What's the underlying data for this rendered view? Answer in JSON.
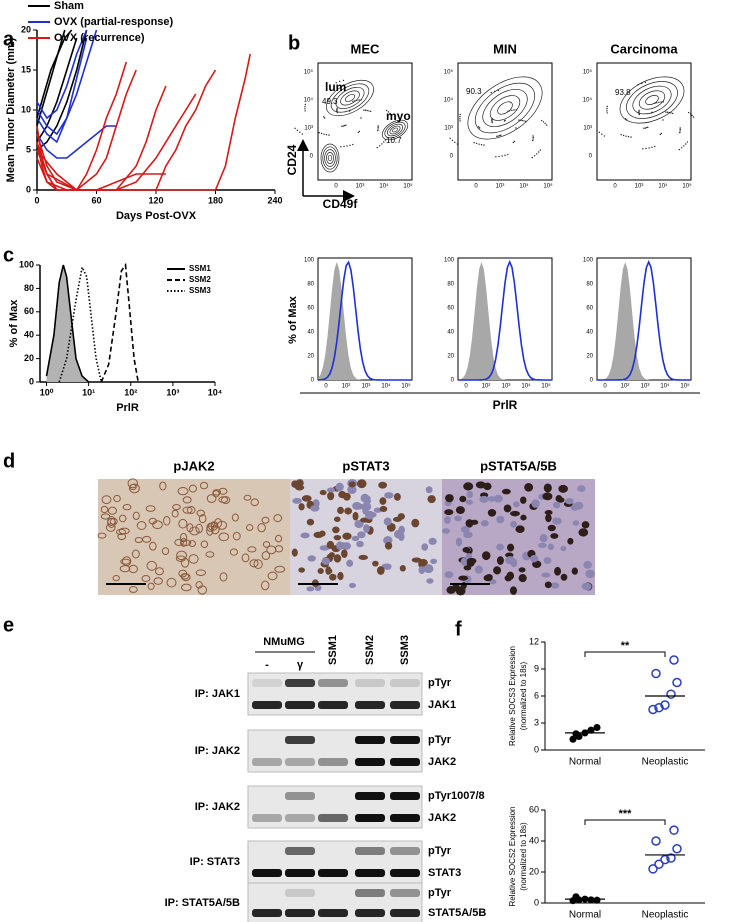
{
  "panel_labels": [
    "a",
    "b",
    "c",
    "d",
    "e",
    "f"
  ],
  "chart_data": [
    {
      "type": "line",
      "ylabel": "Mean Tumor Diameter (mm)",
      "xlabel": "Days Post-OVX",
      "xlim": [
        0,
        240
      ],
      "xticks": [
        0,
        60,
        120,
        180,
        240
      ],
      "ylim": [
        0,
        20
      ],
      "yticks": [
        0,
        5,
        10,
        15,
        20
      ],
      "legend": "top",
      "series": [
        {
          "name": "Sham",
          "color": "#000000",
          "lines": [
            {
              "x": [
                0,
                7,
                14,
                21,
                28
              ],
              "values": [
                8,
                11,
                14,
                17,
                20
              ]
            },
            {
              "x": [
                0,
                10,
                20,
                30,
                40
              ],
              "values": [
                6,
                8,
                11,
                15,
                19
              ]
            },
            {
              "x": [
                0,
                10,
                20,
                30,
                40,
                50
              ],
              "values": [
                5,
                6,
                8,
                11,
                15,
                20
              ]
            },
            {
              "x": [
                0,
                7,
                14,
                21,
                28,
                35
              ],
              "values": [
                9,
                12,
                15,
                17,
                19,
                20
              ]
            }
          ]
        },
        {
          "name": "OVX (partial-response)",
          "color": "#1f2fd6",
          "lines": [
            {
              "x": [
                0,
                10,
                20,
                30,
                40,
                50,
                60
              ],
              "values": [
                10,
                8,
                7,
                9,
                12,
                16,
                20
              ]
            },
            {
              "x": [
                0,
                10,
                20,
                30,
                40,
                50
              ],
              "values": [
                9,
                7,
                6,
                9,
                14,
                19
              ]
            },
            {
              "x": [
                0,
                10,
                20,
                30,
                40,
                50,
                60,
                70,
                80
              ],
              "values": [
                7,
                5,
                4,
                4,
                5,
                6,
                7,
                8,
                8
              ]
            },
            {
              "x": [
                0,
                10,
                20,
                30,
                40,
                50
              ],
              "values": [
                11,
                9,
                10,
                13,
                17,
                20
              ]
            }
          ]
        },
        {
          "name": "OVX (recurrence)",
          "color": "#d81818",
          "lines": [
            {
              "x": [
                0,
                5,
                10,
                20,
                30,
                40,
                50,
                60,
                70,
                80,
                90
              ],
              "values": [
                8,
                4,
                2,
                0,
                0,
                0,
                2,
                5,
                9,
                12,
                16
              ]
            },
            {
              "x": [
                0,
                5,
                10,
                20,
                40,
                60,
                70,
                80,
                90,
                100
              ],
              "values": [
                6,
                3,
                1,
                0,
                0,
                2,
                4,
                8,
                12,
                15
              ]
            },
            {
              "x": [
                0,
                10,
                20,
                40,
                60,
                80,
                100,
                110,
                120,
                130
              ],
              "values": [
                5,
                2,
                0,
                0,
                0,
                0,
                3,
                6,
                10,
                13
              ]
            },
            {
              "x": [
                0,
                10,
                20,
                40,
                60,
                80,
                100,
                120,
                140,
                150,
                160
              ],
              "values": [
                7,
                3,
                1,
                0,
                0,
                0,
                1,
                4,
                8,
                10,
                12
              ]
            },
            {
              "x": [
                0,
                10,
                30,
                60,
                90,
                120,
                130,
                140,
                150,
                160,
                170,
                180
              ],
              "values": [
                4,
                1,
                0,
                0,
                0,
                0,
                3,
                5,
                8,
                10,
                13,
                15
              ]
            },
            {
              "x": [
                0,
                10,
                40,
                80,
                120,
                140,
                160,
                180,
                190,
                200,
                210,
                215
              ],
              "values": [
                6,
                2,
                0,
                0,
                0,
                0,
                0,
                0,
                3,
                9,
                14,
                17
              ]
            },
            {
              "x": [
                0,
                20,
                40,
                60,
                80,
                100,
                110,
                120,
                130
              ],
              "values": [
                5,
                2,
                0,
                0,
                1,
                2,
                2,
                2,
                2
              ]
            }
          ]
        }
      ]
    },
    {
      "type": "line",
      "xlog": true,
      "ylabel": "% of Max",
      "xlabel": "PrlR",
      "xlim": [
        0.7,
        10000
      ],
      "xticks": [
        {
          "value": 1,
          "label": "10⁰"
        },
        {
          "value": 10,
          "label": "10¹"
        },
        {
          "value": 100,
          "label": "10²"
        },
        {
          "value": 1000,
          "label": "10³"
        },
        {
          "value": 10000,
          "label": "10⁴"
        }
      ],
      "ylim": [
        0,
        100
      ],
      "yticks": [
        0,
        20,
        40,
        60,
        80,
        100
      ],
      "legend": "upper right",
      "series": [
        {
          "name": "SSM1",
          "color": "#000000",
          "dash": "solid",
          "fill": "#b3b3b3",
          "x": [
            1,
            1.5,
            2,
            2.5,
            3,
            4,
            5,
            7,
            10
          ],
          "values": [
            5,
            40,
            85,
            100,
            90,
            50,
            20,
            5,
            0
          ]
        },
        {
          "name": "SSM2",
          "color": "#000000",
          "dash": "dashed",
          "x": [
            20,
            30,
            45,
            60,
            75,
            90,
            120,
            150
          ],
          "values": [
            0,
            15,
            60,
            95,
            100,
            70,
            20,
            0
          ]
        },
        {
          "name": "SSM3",
          "color": "#000000",
          "dash": "dotted",
          "x": [
            2,
            3,
            5,
            7,
            9,
            12,
            15,
            20
          ],
          "values": [
            0,
            20,
            70,
            98,
            90,
            50,
            20,
            0
          ]
        }
      ]
    },
    {
      "type": "strip",
      "ylabel": [
        "Relative SOCS3 Expression",
        "(normalized to 18s)"
      ],
      "categories": [
        "Normal",
        "Neoplastic"
      ],
      "ylim": [
        0,
        12
      ],
      "yticks": [
        0,
        3,
        6,
        9,
        12
      ],
      "colors": [
        "#000000",
        "#2a3dbd"
      ],
      "markers": [
        "filled",
        "open"
      ],
      "values": [
        [
          1.2,
          1.5,
          1.9,
          2.2,
          2.5,
          1.8
        ],
        [
          4.5,
          4.7,
          5.0,
          6.2,
          7.5,
          8.5,
          10
        ]
      ],
      "center_lines": [
        1.9,
        6.0
      ],
      "significance": "**"
    },
    {
      "type": "strip",
      "ylabel": [
        "Relative SOCS2 Expression",
        "(normalized to 18s)"
      ],
      "categories": [
        "Normal",
        "Neoplastic"
      ],
      "ylim": [
        0,
        60
      ],
      "yticks": [
        0,
        20,
        40,
        60
      ],
      "colors": [
        "#000000",
        "#2a3dbd"
      ],
      "markers": [
        "filled",
        "open"
      ],
      "values": [
        [
          1.5,
          2,
          2.5,
          2,
          1.8,
          4
        ],
        [
          22,
          25,
          28,
          29,
          35,
          40,
          47
        ]
      ],
      "center_lines": [
        2.5,
        31
      ],
      "significance": "***"
    }
  ],
  "flow": {
    "columns": [
      "MEC",
      "MIN",
      "Carcinoma"
    ],
    "y_axis": "CD24",
    "x_axis": "CD49f",
    "gates": {
      "lum": "lum",
      "lum_pct": 49.3,
      "myo": "myo",
      "myo_pct": 10.7,
      "min_pct": 90.3,
      "carcinoma_pct": 93.8
    },
    "dot_ticks": [
      "0",
      "10³",
      "10⁴",
      "10⁵"
    ],
    "dot_y_ticks": [
      "10⁵",
      "10⁴",
      "10³",
      "0"
    ],
    "hist_yticks": [
      0,
      20,
      40,
      60,
      80,
      100
    ],
    "hist_xticks": [
      "0",
      "10²",
      "10³",
      "10⁴",
      "10⁵"
    ],
    "hist_ylabel": "% of Max",
    "hist_xlabel": "PrlR"
  },
  "histology": {
    "titles": [
      "pJAK2",
      "pSTAT3",
      "pSTAT5A/5B"
    ]
  },
  "western": {
    "group": "NMuMG",
    "lanes": [
      "-",
      "γ",
      "SSM1",
      "SSM2",
      "SSM3"
    ],
    "blots": [
      {
        "ip": "IP: JAK1",
        "rows": [
          "pTyr",
          "JAK1"
        ]
      },
      {
        "ip": "IP: JAK2",
        "rows": [
          "pTyr",
          "JAK2"
        ]
      },
      {
        "ip": "IP: JAK2",
        "rows": [
          "pTyr1007/8",
          "JAK2"
        ]
      },
      {
        "ip": "IP: STAT3",
        "rows": [
          "pTyr",
          "STAT3"
        ]
      },
      {
        "ip": "IP: STAT5A/5B",
        "rows": [
          "pTyr",
          "STAT5A/5B"
        ]
      }
    ]
  }
}
